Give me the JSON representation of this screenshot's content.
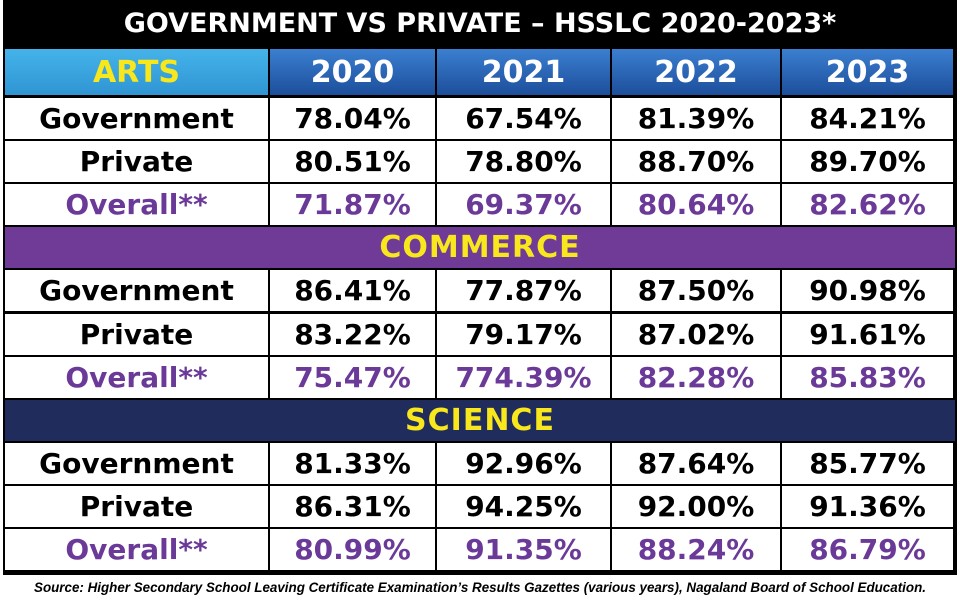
{
  "header": {
    "title": "GOVERNMENT VS PRIVATE – HSSLC  2020-2023*"
  },
  "table": {
    "columns": [
      "ARTS",
      "2020",
      "2021",
      "2022",
      "2023"
    ],
    "sections": [
      {
        "rows": [
          [
            "Government",
            "78.04%",
            "67.54%",
            "81.39%",
            "84.21%"
          ],
          [
            "Private",
            "80.51%",
            "78.80%",
            "88.70%",
            "89.70%"
          ],
          [
            "Overall**",
            "71.87%",
            "69.37%",
            "80.64%",
            "82.62%"
          ]
        ]
      },
      {
        "title": "COMMERCE",
        "rows": [
          [
            "Government",
            "86.41%",
            "77.87%",
            "87.50%",
            "90.98%"
          ],
          [
            "Private",
            "83.22%",
            "79.17%",
            "87.02%",
            "91.61%"
          ],
          [
            "Overall**",
            "75.47%",
            "774.39%",
            "82.28%",
            "85.83%"
          ]
        ]
      },
      {
        "title": "SCIENCE",
        "rows": [
          [
            "Government",
            "81.33%",
            "92.96%",
            "87.64%",
            "85.77%"
          ],
          [
            "Private",
            "86.31%",
            "94.25%",
            "92.00%",
            "91.36%"
          ],
          [
            "Overall**",
            "80.99%",
            "91.35%",
            "88.24%",
            "86.79%"
          ]
        ]
      }
    ]
  },
  "source": "Source:  Higher Secondary School Leaving Certificate Examination’s Results Gazettes (various years), Nagaland Board of School Education."
}
